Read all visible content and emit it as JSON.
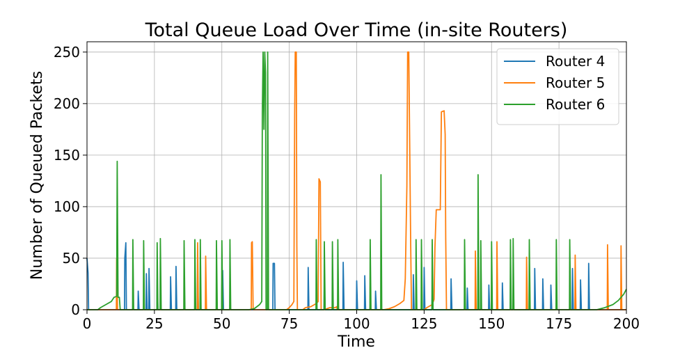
{
  "chart_data": {
    "type": "line",
    "title": "Total Queue Load Over Time (in-site Routers)",
    "xlabel": "Time",
    "ylabel": "Number of Queued Packets",
    "xlim": [
      0,
      200
    ],
    "ylim": [
      0,
      260
    ],
    "xticks": [
      0,
      25,
      50,
      75,
      100,
      125,
      150,
      175,
      200
    ],
    "yticks": [
      0,
      50,
      100,
      150,
      200,
      250
    ],
    "grid": true,
    "legend_position": "top-right",
    "series": [
      {
        "name": "Router 4",
        "color": "#1f77b4",
        "points": [
          [
            0,
            50
          ],
          [
            0.4,
            36
          ],
          [
            0.6,
            0
          ],
          [
            13.9,
            0
          ],
          [
            14,
            50
          ],
          [
            14.4,
            65
          ],
          [
            14.6,
            0
          ],
          [
            18.9,
            0
          ],
          [
            19,
            18
          ],
          [
            19.3,
            0
          ],
          [
            21.9,
            0
          ],
          [
            22,
            35
          ],
          [
            22.3,
            0
          ],
          [
            22.9,
            0
          ],
          [
            23,
            40
          ],
          [
            23.3,
            0
          ],
          [
            25.9,
            0
          ],
          [
            26,
            29
          ],
          [
            26.3,
            0
          ],
          [
            30.9,
            0
          ],
          [
            31,
            32
          ],
          [
            31.3,
            0
          ],
          [
            32.9,
            0
          ],
          [
            33,
            42
          ],
          [
            33.3,
            0
          ],
          [
            40.9,
            0
          ],
          [
            41,
            36
          ],
          [
            41.3,
            0
          ],
          [
            49.9,
            0
          ],
          [
            50,
            24
          ],
          [
            50.3,
            38
          ],
          [
            50.6,
            0
          ],
          [
            68.9,
            0
          ],
          [
            69,
            45
          ],
          [
            69.5,
            45
          ],
          [
            69.7,
            0
          ],
          [
            81.9,
            0
          ],
          [
            82,
            41
          ],
          [
            82.3,
            0
          ],
          [
            87.9,
            0
          ],
          [
            88,
            27
          ],
          [
            88.3,
            0
          ],
          [
            94.9,
            0
          ],
          [
            95,
            46
          ],
          [
            95.3,
            0
          ],
          [
            99.9,
            0
          ],
          [
            100,
            28
          ],
          [
            100.3,
            0
          ],
          [
            102.9,
            0
          ],
          [
            103,
            33
          ],
          [
            103.3,
            0
          ],
          [
            106.9,
            0
          ],
          [
            107,
            18
          ],
          [
            107.3,
            0
          ],
          [
            120.9,
            0
          ],
          [
            121,
            34
          ],
          [
            121.3,
            0
          ],
          [
            124.9,
            0
          ],
          [
            125,
            41
          ],
          [
            125.3,
            0
          ],
          [
            127.9,
            0
          ],
          [
            128,
            20
          ],
          [
            128.3,
            0
          ],
          [
            134.9,
            0
          ],
          [
            135,
            30
          ],
          [
            135.3,
            0
          ],
          [
            140.9,
            0
          ],
          [
            141,
            21
          ],
          [
            141.3,
            0
          ],
          [
            148.9,
            0
          ],
          [
            149,
            24
          ],
          [
            149.3,
            0
          ],
          [
            153.9,
            0
          ],
          [
            154,
            26
          ],
          [
            154.3,
            0
          ],
          [
            165.9,
            0
          ],
          [
            166,
            40
          ],
          [
            166.3,
            0
          ],
          [
            168.9,
            0
          ],
          [
            169,
            30
          ],
          [
            169.3,
            0
          ],
          [
            171.9,
            0
          ],
          [
            172,
            24
          ],
          [
            172.3,
            0
          ],
          [
            179.9,
            0
          ],
          [
            180,
            40
          ],
          [
            180.3,
            0
          ],
          [
            182.9,
            0
          ],
          [
            183,
            29
          ],
          [
            183.3,
            0
          ],
          [
            185.9,
            0
          ],
          [
            186,
            45
          ],
          [
            186.3,
            0
          ],
          [
            200,
            0
          ]
        ]
      },
      {
        "name": "Router 5",
        "color": "#ff7f0e",
        "points": [
          [
            0,
            0
          ],
          [
            10.9,
            0
          ],
          [
            11,
            50
          ],
          [
            11.3,
            0
          ],
          [
            40.9,
            0
          ],
          [
            41,
            65
          ],
          [
            41.3,
            0
          ],
          [
            43.9,
            0
          ],
          [
            44,
            52
          ],
          [
            44.3,
            0
          ],
          [
            60.9,
            0
          ],
          [
            61,
            65
          ],
          [
            61.3,
            66
          ],
          [
            61.6,
            0
          ],
          [
            74,
            0
          ],
          [
            75,
            2
          ],
          [
            76,
            5
          ],
          [
            76.7,
            8
          ],
          [
            77,
            190
          ],
          [
            77.2,
            250
          ],
          [
            77.6,
            250
          ],
          [
            77.8,
            62
          ],
          [
            78,
            0
          ],
          [
            80,
            0
          ],
          [
            81,
            2
          ],
          [
            83,
            3
          ],
          [
            85,
            6
          ],
          [
            85.7,
            8
          ],
          [
            86,
            127
          ],
          [
            86.5,
            124
          ],
          [
            86.8,
            0
          ],
          [
            88,
            0
          ],
          [
            90,
            2
          ],
          [
            92,
            2
          ],
          [
            92.6,
            3
          ],
          [
            92.8,
            0
          ],
          [
            105,
            0
          ],
          [
            110,
            0
          ],
          [
            112,
            1
          ],
          [
            114,
            3
          ],
          [
            116,
            6
          ],
          [
            117.5,
            9
          ],
          [
            118,
            30
          ],
          [
            118.6,
            120
          ],
          [
            118.9,
            250
          ],
          [
            119.3,
            250
          ],
          [
            119.7,
            150
          ],
          [
            120,
            68
          ],
          [
            120.3,
            0
          ],
          [
            125,
            0
          ],
          [
            126,
            2
          ],
          [
            128,
            5
          ],
          [
            128.7,
            10
          ],
          [
            129,
            60
          ],
          [
            129.5,
            97
          ],
          [
            131,
            97
          ],
          [
            131.4,
            192
          ],
          [
            132.4,
            193
          ],
          [
            132.8,
            170
          ],
          [
            133,
            70
          ],
          [
            133.3,
            0
          ],
          [
            143.9,
            0
          ],
          [
            144,
            57
          ],
          [
            144.3,
            0
          ],
          [
            151.9,
            0
          ],
          [
            152,
            66
          ],
          [
            152.3,
            0
          ],
          [
            162.9,
            0
          ],
          [
            163,
            51
          ],
          [
            163.3,
            0
          ],
          [
            180.9,
            0
          ],
          [
            181,
            53
          ],
          [
            181.3,
            0
          ],
          [
            192.9,
            0
          ],
          [
            193,
            63
          ],
          [
            193.3,
            0
          ],
          [
            197.9,
            0
          ],
          [
            198,
            62
          ],
          [
            198.3,
            0
          ],
          [
            200,
            0
          ]
        ]
      },
      {
        "name": "Router 6",
        "color": "#2ca02c",
        "points": [
          [
            0,
            0
          ],
          [
            4,
            0
          ],
          [
            5,
            2
          ],
          [
            7,
            5
          ],
          [
            9,
            8
          ],
          [
            10,
            12
          ],
          [
            11,
            13
          ],
          [
            11.2,
            144
          ],
          [
            11.5,
            12
          ],
          [
            12,
            12
          ],
          [
            12.3,
            0
          ],
          [
            16.9,
            0
          ],
          [
            17,
            68
          ],
          [
            17.3,
            0
          ],
          [
            20.9,
            0
          ],
          [
            21,
            67
          ],
          [
            21.3,
            0
          ],
          [
            25.9,
            0
          ],
          [
            26,
            65
          ],
          [
            26.3,
            0
          ],
          [
            27.1,
            0
          ],
          [
            27.2,
            69
          ],
          [
            27.5,
            0
          ],
          [
            35.9,
            0
          ],
          [
            36,
            67
          ],
          [
            36.3,
            0
          ],
          [
            39.9,
            0
          ],
          [
            40,
            68
          ],
          [
            40.3,
            0
          ],
          [
            41.9,
            0
          ],
          [
            42,
            68
          ],
          [
            42.3,
            0
          ],
          [
            47.9,
            0
          ],
          [
            48,
            67
          ],
          [
            48.3,
            0
          ],
          [
            49.9,
            0
          ],
          [
            50,
            67
          ],
          [
            50.3,
            0
          ],
          [
            52.9,
            0
          ],
          [
            53,
            68
          ],
          [
            53.3,
            0
          ],
          [
            60,
            0
          ],
          [
            62,
            1
          ],
          [
            64,
            5
          ],
          [
            64.8,
            8
          ],
          [
            65,
            190
          ],
          [
            65.3,
            250
          ],
          [
            65.6,
            175
          ],
          [
            65.9,
            250
          ],
          [
            66.2,
            230
          ],
          [
            66.4,
            0
          ],
          [
            66.9,
            0
          ],
          [
            67,
            250
          ],
          [
            67.3,
            0
          ],
          [
            84.9,
            0
          ],
          [
            85,
            68
          ],
          [
            85.3,
            0
          ],
          [
            87.9,
            0
          ],
          [
            88,
            66
          ],
          [
            88.3,
            0
          ],
          [
            90.9,
            0
          ],
          [
            91,
            66
          ],
          [
            91.3,
            0
          ],
          [
            92.9,
            0
          ],
          [
            93,
            68
          ],
          [
            93.3,
            0
          ],
          [
            104.9,
            0
          ],
          [
            105,
            68
          ],
          [
            105.3,
            0
          ],
          [
            108.9,
            0
          ],
          [
            109,
            131
          ],
          [
            109.3,
            0
          ],
          [
            121.9,
            0
          ],
          [
            122,
            68
          ],
          [
            122.3,
            0
          ],
          [
            123.9,
            0
          ],
          [
            124,
            68
          ],
          [
            124.3,
            0
          ],
          [
            127.9,
            0
          ],
          [
            128,
            68
          ],
          [
            128.3,
            0
          ],
          [
            139.9,
            0
          ],
          [
            140,
            68
          ],
          [
            140.3,
            0
          ],
          [
            144.9,
            0
          ],
          [
            145,
            131
          ],
          [
            145.3,
            0
          ],
          [
            145.9,
            0
          ],
          [
            146,
            67
          ],
          [
            146.3,
            0
          ],
          [
            149.9,
            0
          ],
          [
            150,
            66
          ],
          [
            150.3,
            0
          ],
          [
            156.9,
            0
          ],
          [
            157,
            68
          ],
          [
            157.3,
            0
          ],
          [
            157.9,
            0
          ],
          [
            158,
            69
          ],
          [
            158.3,
            0
          ],
          [
            163.9,
            0
          ],
          [
            164,
            68
          ],
          [
            164.3,
            0
          ],
          [
            173.9,
            0
          ],
          [
            174,
            68
          ],
          [
            174.3,
            0
          ],
          [
            178.9,
            0
          ],
          [
            179,
            68
          ],
          [
            179.3,
            0
          ],
          [
            189,
            0
          ],
          [
            192,
            2
          ],
          [
            195,
            5
          ],
          [
            197,
            9
          ],
          [
            199,
            15
          ],
          [
            200,
            20
          ]
        ]
      }
    ]
  }
}
